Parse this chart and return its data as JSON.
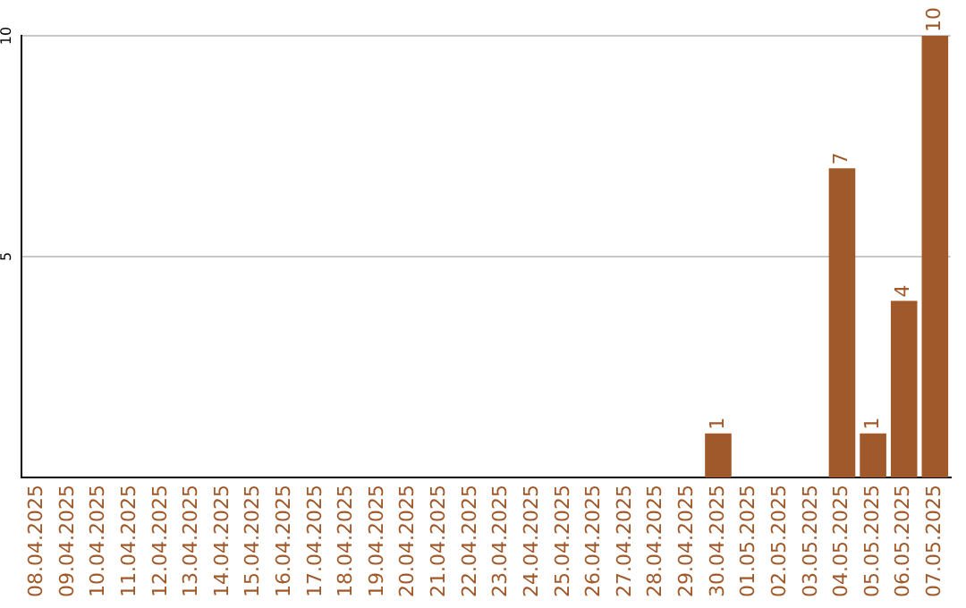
{
  "chart_data": {
    "type": "bar",
    "categories": [
      "08.04.2025",
      "09.04.2025",
      "10.04.2025",
      "11.04.2025",
      "12.04.2025",
      "13.04.2025",
      "14.04.2025",
      "15.04.2025",
      "16.04.2025",
      "17.04.2025",
      "18.04.2025",
      "19.04.2025",
      "20.04.2025",
      "21.04.2025",
      "22.04.2025",
      "23.04.2025",
      "24.04.2025",
      "25.04.2025",
      "26.04.2025",
      "27.04.2025",
      "28.04.2025",
      "29.04.2025",
      "30.04.2025",
      "01.05.2025",
      "02.05.2025",
      "03.05.2025",
      "04.05.2025",
      "05.05.2025",
      "06.05.2025",
      "07.05.2025"
    ],
    "values": [
      0,
      0,
      0,
      0,
      0,
      0,
      0,
      0,
      0,
      0,
      0,
      0,
      0,
      0,
      0,
      0,
      0,
      0,
      0,
      0,
      0,
      0,
      1,
      0,
      0,
      0,
      7,
      1,
      4,
      10
    ],
    "value_labels": [
      null,
      null,
      null,
      null,
      null,
      null,
      null,
      null,
      null,
      null,
      null,
      null,
      null,
      null,
      null,
      null,
      null,
      null,
      null,
      null,
      null,
      null,
      "1",
      null,
      null,
      null,
      "7",
      "1",
      "4",
      "10"
    ],
    "color": "#a0592a",
    "ylim": [
      0,
      10
    ],
    "yticks": [
      5,
      10
    ],
    "grid": "y",
    "legend": false
  }
}
